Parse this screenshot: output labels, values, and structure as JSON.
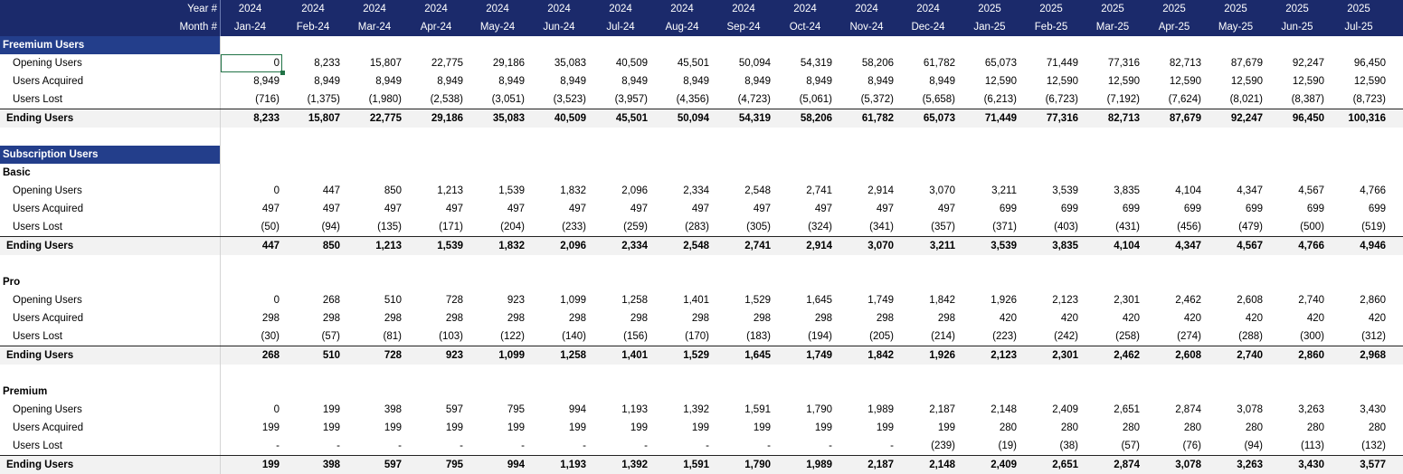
{
  "header": {
    "year_label": "Year #",
    "month_label": "Month #",
    "years": [
      "2024",
      "2024",
      "2024",
      "2024",
      "2024",
      "2024",
      "2024",
      "2024",
      "2024",
      "2024",
      "2024",
      "2024",
      "2025",
      "2025",
      "2025",
      "2025",
      "2025",
      "2025",
      "2025"
    ],
    "months": [
      "Jan-24",
      "Feb-24",
      "Mar-24",
      "Apr-24",
      "May-24",
      "Jun-24",
      "Jul-24",
      "Aug-24",
      "Sep-24",
      "Oct-24",
      "Nov-24",
      "Dec-24",
      "Jan-25",
      "Feb-25",
      "Mar-25",
      "Apr-25",
      "May-25",
      "Jun-25",
      "Jul-25"
    ]
  },
  "rows": [
    {
      "kind": "section",
      "label": "Freemium Users",
      "values": []
    },
    {
      "kind": "line",
      "label": "Opening Users",
      "values": [
        "0",
        "8,233",
        "15,807",
        "22,775",
        "29,186",
        "35,083",
        "40,509",
        "45,501",
        "50,094",
        "54,319",
        "58,206",
        "61,782",
        "65,073",
        "71,449",
        "77,316",
        "82,713",
        "87,679",
        "92,247",
        "96,450"
      ]
    },
    {
      "kind": "line",
      "label": "Users Acquired",
      "values": [
        "8,949",
        "8,949",
        "8,949",
        "8,949",
        "8,949",
        "8,949",
        "8,949",
        "8,949",
        "8,949",
        "8,949",
        "8,949",
        "8,949",
        "12,590",
        "12,590",
        "12,590",
        "12,590",
        "12,590",
        "12,590",
        "12,590"
      ]
    },
    {
      "kind": "line",
      "label": "Users Lost",
      "values": [
        "(716)",
        "(1,375)",
        "(1,980)",
        "(2,538)",
        "(3,051)",
        "(3,523)",
        "(3,957)",
        "(4,356)",
        "(4,723)",
        "(5,061)",
        "(5,372)",
        "(5,658)",
        "(6,213)",
        "(6,723)",
        "(7,192)",
        "(7,624)",
        "(8,021)",
        "(8,387)",
        "(8,723)"
      ]
    },
    {
      "kind": "total",
      "label": "Ending Users",
      "values": [
        "8,233",
        "15,807",
        "22,775",
        "29,186",
        "35,083",
        "40,509",
        "45,501",
        "50,094",
        "54,319",
        "58,206",
        "61,782",
        "65,073",
        "71,449",
        "77,316",
        "82,713",
        "87,679",
        "92,247",
        "96,450",
        "100,316"
      ]
    },
    {
      "kind": "blank",
      "label": "",
      "values": []
    },
    {
      "kind": "section",
      "label": "Subscription Users",
      "values": []
    },
    {
      "kind": "sub",
      "label": "Basic",
      "values": []
    },
    {
      "kind": "line",
      "label": "Opening Users",
      "values": [
        "0",
        "447",
        "850",
        "1,213",
        "1,539",
        "1,832",
        "2,096",
        "2,334",
        "2,548",
        "2,741",
        "2,914",
        "3,070",
        "3,211",
        "3,539",
        "3,835",
        "4,104",
        "4,347",
        "4,567",
        "4,766"
      ]
    },
    {
      "kind": "line",
      "label": "Users Acquired",
      "values": [
        "497",
        "497",
        "497",
        "497",
        "497",
        "497",
        "497",
        "497",
        "497",
        "497",
        "497",
        "497",
        "699",
        "699",
        "699",
        "699",
        "699",
        "699",
        "699"
      ]
    },
    {
      "kind": "line",
      "label": "Users Lost",
      "values": [
        "(50)",
        "(94)",
        "(135)",
        "(171)",
        "(204)",
        "(233)",
        "(259)",
        "(283)",
        "(305)",
        "(324)",
        "(341)",
        "(357)",
        "(371)",
        "(403)",
        "(431)",
        "(456)",
        "(479)",
        "(500)",
        "(519)"
      ]
    },
    {
      "kind": "total",
      "label": "Ending Users",
      "values": [
        "447",
        "850",
        "1,213",
        "1,539",
        "1,832",
        "2,096",
        "2,334",
        "2,548",
        "2,741",
        "2,914",
        "3,070",
        "3,211",
        "3,539",
        "3,835",
        "4,104",
        "4,347",
        "4,567",
        "4,766",
        "4,946"
      ]
    },
    {
      "kind": "blank",
      "label": "",
      "values": []
    },
    {
      "kind": "sub",
      "label": "Pro",
      "values": []
    },
    {
      "kind": "line",
      "label": "Opening Users",
      "values": [
        "0",
        "268",
        "510",
        "728",
        "923",
        "1,099",
        "1,258",
        "1,401",
        "1,529",
        "1,645",
        "1,749",
        "1,842",
        "1,926",
        "2,123",
        "2,301",
        "2,462",
        "2,608",
        "2,740",
        "2,860"
      ]
    },
    {
      "kind": "line",
      "label": "Users Acquired",
      "values": [
        "298",
        "298",
        "298",
        "298",
        "298",
        "298",
        "298",
        "298",
        "298",
        "298",
        "298",
        "298",
        "420",
        "420",
        "420",
        "420",
        "420",
        "420",
        "420"
      ]
    },
    {
      "kind": "line",
      "label": "Users Lost",
      "values": [
        "(30)",
        "(57)",
        "(81)",
        "(103)",
        "(122)",
        "(140)",
        "(156)",
        "(170)",
        "(183)",
        "(194)",
        "(205)",
        "(214)",
        "(223)",
        "(242)",
        "(258)",
        "(274)",
        "(288)",
        "(300)",
        "(312)"
      ]
    },
    {
      "kind": "total",
      "label": "Ending Users",
      "values": [
        "268",
        "510",
        "728",
        "923",
        "1,099",
        "1,258",
        "1,401",
        "1,529",
        "1,645",
        "1,749",
        "1,842",
        "1,926",
        "2,123",
        "2,301",
        "2,462",
        "2,608",
        "2,740",
        "2,860",
        "2,968"
      ]
    },
    {
      "kind": "blank",
      "label": "",
      "values": []
    },
    {
      "kind": "sub",
      "label": "Premium",
      "values": []
    },
    {
      "kind": "line",
      "label": "Opening Users",
      "values": [
        "0",
        "199",
        "398",
        "597",
        "795",
        "994",
        "1,193",
        "1,392",
        "1,591",
        "1,790",
        "1,989",
        "2,187",
        "2,148",
        "2,409",
        "2,651",
        "2,874",
        "3,078",
        "3,263",
        "3,430"
      ]
    },
    {
      "kind": "line",
      "label": "Users Acquired",
      "values": [
        "199",
        "199",
        "199",
        "199",
        "199",
        "199",
        "199",
        "199",
        "199",
        "199",
        "199",
        "199",
        "280",
        "280",
        "280",
        "280",
        "280",
        "280",
        "280"
      ]
    },
    {
      "kind": "line",
      "label": "Users Lost",
      "values": [
        "-",
        "-",
        "-",
        "-",
        "-",
        "-",
        "-",
        "-",
        "-",
        "-",
        "-",
        "(239)",
        "(19)",
        "(38)",
        "(57)",
        "(76)",
        "(94)",
        "(113)",
        "(132)"
      ]
    },
    {
      "kind": "total",
      "label": "Ending Users",
      "values": [
        "199",
        "398",
        "597",
        "795",
        "994",
        "1,193",
        "1,392",
        "1,591",
        "1,790",
        "1,989",
        "2,187",
        "2,148",
        "2,409",
        "2,651",
        "2,874",
        "3,078",
        "3,263",
        "3,430",
        "3,577"
      ]
    }
  ],
  "selected_cell": {
    "row": 1,
    "col": 0
  }
}
